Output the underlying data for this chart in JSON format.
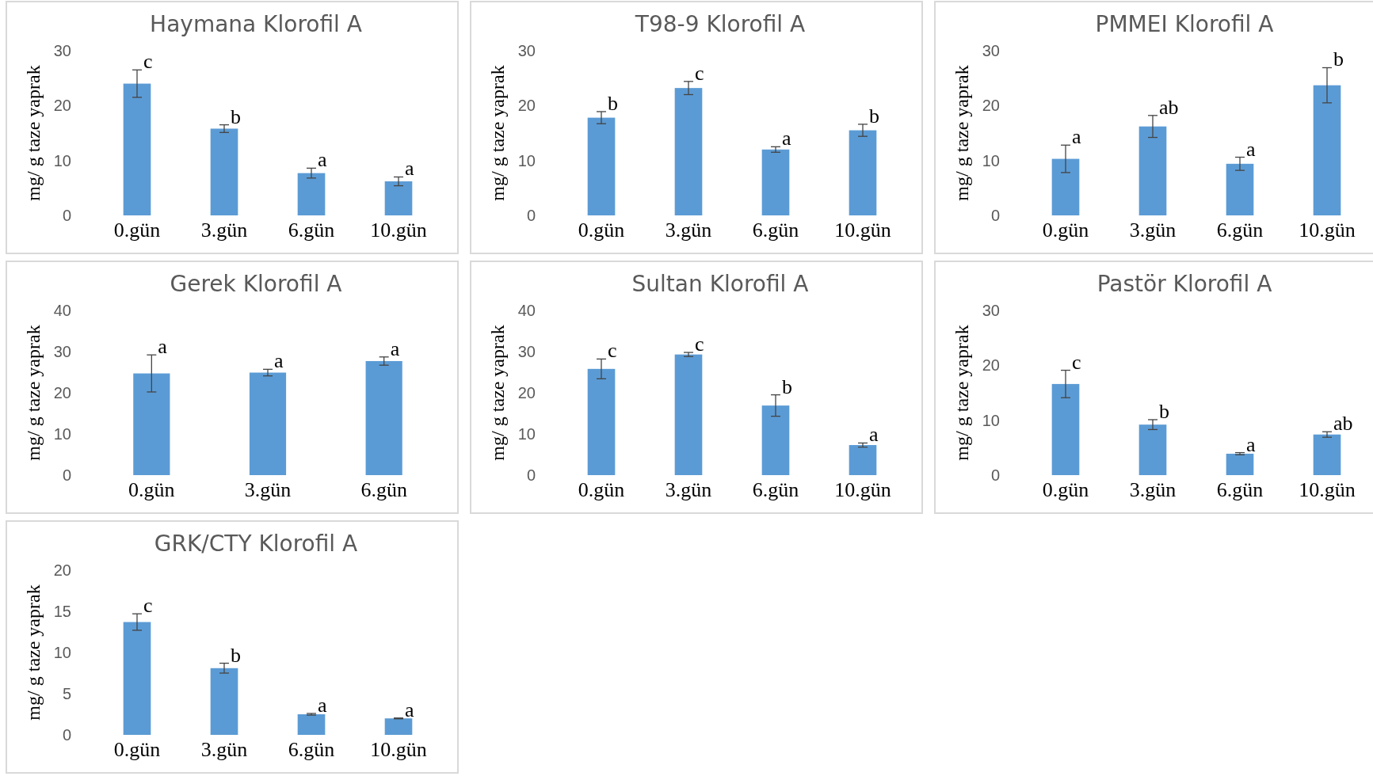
{
  "chart_data": [
    {
      "type": "bar",
      "title": "Haymana Klorofil A",
      "ylabel": "mg/ g taze yaprak",
      "categories": [
        "0.gün",
        "3.gün",
        "6.gün",
        "10.gün"
      ],
      "values": [
        24,
        15.8,
        7.7,
        6.2
      ],
      "errors": [
        2.5,
        0.7,
        0.9,
        0.8
      ],
      "color": "#5b9bd5",
      "ylim": [
        0,
        30
      ],
      "yticks": [
        0,
        10,
        20,
        30
      ],
      "grid": false,
      "annotations": [
        {
          "text": "c",
          "x": "0.gün",
          "y": 26.5
        },
        {
          "text": "b",
          "x": "3.gün",
          "y": 16.5
        },
        {
          "text": "a",
          "x": "6.gün",
          "y": 8.6
        },
        {
          "text": "a",
          "x": "10.gün",
          "y": 7
        }
      ]
    },
    {
      "type": "bar",
      "title": "T98-9 Klorofil A",
      "ylabel": "mg/ g taze yaprak",
      "categories": [
        "0.gün",
        "3.gün",
        "6.gün",
        "10.gün"
      ],
      "values": [
        17.8,
        23.2,
        12,
        15.5
      ],
      "errors": [
        1.1,
        1.2,
        0.5,
        1.1
      ],
      "color": "#5b9bd5",
      "ylim": [
        0,
        30
      ],
      "yticks": [
        0,
        10,
        20,
        30
      ],
      "grid": false,
      "annotations": [
        {
          "text": "b",
          "x": "0.gün",
          "y": 18.9
        },
        {
          "text": "c",
          "x": "3.gün",
          "y": 24.4
        },
        {
          "text": "a",
          "x": "6.gün",
          "y": 12.5
        },
        {
          "text": "b",
          "x": "10.gün",
          "y": 16.6
        }
      ]
    },
    {
      "type": "bar",
      "title": "PMMEI Klorofil A",
      "ylabel": "mg/ g taze yaprak",
      "categories": [
        "0.gün",
        "3.gün",
        "6.gün",
        "10.gün"
      ],
      "values": [
        10.3,
        16.2,
        9.4,
        23.7
      ],
      "errors": [
        2.5,
        2,
        1.2,
        3.2
      ],
      "color": "#5b9bd5",
      "ylim": [
        0,
        30
      ],
      "yticks": [
        0,
        10,
        20,
        30
      ],
      "grid": false,
      "annotations": [
        {
          "text": "a",
          "x": "0.gün",
          "y": 12.8
        },
        {
          "text": "ab",
          "x": "3.gün",
          "y": 18.2
        },
        {
          "text": "a",
          "x": "6.gün",
          "y": 10.6
        },
        {
          "text": "b",
          "x": "10.gün",
          "y": 26.9
        }
      ]
    },
    {
      "type": "bar",
      "title": "Gerek Klorofil A",
      "ylabel": "mg/ g taze yaprak",
      "categories": [
        "0.gün",
        "3.gün",
        "6.gün"
      ],
      "values": [
        24.7,
        24.9,
        27.7
      ],
      "errors": [
        4.5,
        0.8,
        1
      ],
      "color": "#5b9bd5",
      "ylim": [
        0,
        40
      ],
      "yticks": [
        0,
        10,
        20,
        30,
        40
      ],
      "grid": false,
      "annotations": [
        {
          "text": "a",
          "x": "0.gün",
          "y": 29.2
        },
        {
          "text": "a",
          "x": "3.gün",
          "y": 25.7
        },
        {
          "text": "a",
          "x": "6.gün",
          "y": 28.7
        }
      ]
    },
    {
      "type": "bar",
      "title": "Sultan Klorofil A",
      "ylabel": "mg/ g taze yaprak",
      "categories": [
        "0.gün",
        "3.gün",
        "6.gün",
        "10.gün"
      ],
      "values": [
        25.8,
        29.3,
        16.9,
        7.3
      ],
      "errors": [
        2.4,
        0.5,
        2.6,
        0.5
      ],
      "color": "#5b9bd5",
      "ylim": [
        0,
        40
      ],
      "yticks": [
        0,
        10,
        20,
        30,
        40
      ],
      "grid": false,
      "annotations": [
        {
          "text": "c",
          "x": "0.gün",
          "y": 28.2
        },
        {
          "text": "c",
          "x": "3.gün",
          "y": 29.8
        },
        {
          "text": "b",
          "x": "6.gün",
          "y": 19.5
        },
        {
          "text": "a",
          "x": "10.gün",
          "y": 7.8
        }
      ]
    },
    {
      "type": "bar",
      "title": "Pastör Klorofil A",
      "ylabel": "mg/ g taze yaprak",
      "categories": [
        "0.gün",
        "3.gün",
        "6.gün",
        "10.gün"
      ],
      "values": [
        16.6,
        9.2,
        3.9,
        7.4
      ],
      "errors": [
        2.5,
        0.9,
        0.2,
        0.5
      ],
      "color": "#5b9bd5",
      "ylim": [
        0,
        30
      ],
      "yticks": [
        0,
        10,
        20,
        30
      ],
      "grid": false,
      "annotations": [
        {
          "text": "c",
          "x": "0.gün",
          "y": 19.1
        },
        {
          "text": "b",
          "x": "3.gün",
          "y": 10.1
        },
        {
          "text": "a",
          "x": "6.gün",
          "y": 4.1
        },
        {
          "text": "ab",
          "x": "10.gün",
          "y": 7.9
        }
      ]
    },
    {
      "type": "bar",
      "title": "GRK/CTY Klorofil A",
      "ylabel": "mg/ g taze yaprak",
      "categories": [
        "0.gün",
        "3.gün",
        "6.gün",
        "10.gün"
      ],
      "values": [
        13.7,
        8.1,
        2.5,
        2
      ],
      "errors": [
        1,
        0.6,
        0.1,
        0.05
      ],
      "color": "#5b9bd5",
      "ylim": [
        0,
        20
      ],
      "yticks": [
        0,
        5,
        10,
        15,
        20
      ],
      "grid": false,
      "annotations": [
        {
          "text": "c",
          "x": "0.gün",
          "y": 14.7
        },
        {
          "text": "b",
          "x": "3.gün",
          "y": 8.7
        },
        {
          "text": "a",
          "x": "6.gün",
          "y": 2.6
        },
        {
          "text": "a",
          "x": "10.gün",
          "y": 2.05
        }
      ]
    }
  ]
}
